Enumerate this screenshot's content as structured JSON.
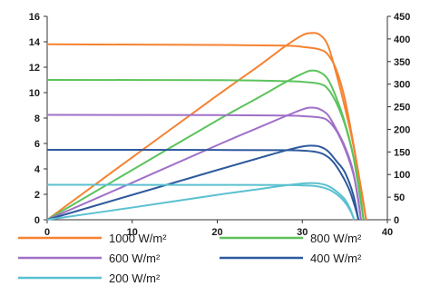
{
  "chart_data": {
    "type": "line",
    "title": "",
    "xlabel": "",
    "ylabel": "",
    "y2label": "",
    "xlim": [
      0,
      40
    ],
    "ylim": [
      0,
      16
    ],
    "y2lim": [
      0,
      450
    ],
    "x_ticks": [
      0,
      10,
      20,
      30,
      40
    ],
    "y_ticks": [
      0,
      2,
      4,
      6,
      8,
      10,
      12,
      14,
      16
    ],
    "y2_ticks": [
      0,
      50,
      100,
      150,
      200,
      250,
      300,
      350,
      400,
      450
    ],
    "grid": false,
    "legend_position": "bottom",
    "series": [
      {
        "name": "1000 W/m²",
        "color": "#f58231",
        "current": {
          "x": [
            0,
            20,
            28,
            30,
            32,
            33,
            34,
            35,
            36,
            37,
            37.5
          ],
          "y": [
            13.8,
            13.75,
            13.7,
            13.6,
            13.4,
            13.0,
            11.8,
            9.5,
            6.0,
            2.0,
            0
          ]
        },
        "power": {
          "x": [
            0,
            10,
            20,
            25,
            28,
            30,
            31,
            32,
            33,
            34,
            35,
            36,
            37,
            37.5
          ],
          "y": [
            0,
            138,
            275,
            342,
            384,
            408,
            413,
            410,
            386,
            323,
            249,
            165,
            60,
            0
          ]
        }
      },
      {
        "name": "800 W/m²",
        "color": "#5cc35c",
        "current": {
          "x": [
            0,
            20,
            28,
            30,
            32,
            33,
            34,
            35,
            36,
            36.8,
            37.2
          ],
          "y": [
            11.0,
            10.98,
            10.9,
            10.85,
            10.7,
            10.3,
            9.2,
            7.5,
            5.0,
            2.0,
            0
          ]
        },
        "power": {
          "x": [
            0,
            10,
            20,
            25,
            28,
            30,
            31,
            32,
            33,
            34,
            35,
            36,
            37.2
          ],
          "y": [
            0,
            110,
            220,
            272,
            304,
            323,
            330,
            327,
            311,
            270,
            215,
            140,
            0
          ]
        }
      },
      {
        "name": "600 W/m²",
        "color": "#a070c8",
        "current": {
          "x": [
            0,
            20,
            28,
            30,
            32,
            33,
            34,
            35,
            36,
            36.6,
            36.9
          ],
          "y": [
            8.25,
            8.23,
            8.2,
            8.15,
            8.05,
            7.8,
            7.0,
            5.6,
            3.6,
            1.5,
            0
          ]
        },
        "power": {
          "x": [
            0,
            10,
            20,
            25,
            28,
            30,
            31,
            32,
            33,
            34,
            35,
            36,
            36.9
          ],
          "y": [
            0,
            82,
            165,
            205,
            229,
            244,
            248,
            245,
            232,
            200,
            162,
            105,
            0
          ]
        }
      },
      {
        "name": "400 W/m²",
        "color": "#2e5a9e",
        "current": {
          "x": [
            0,
            20,
            28,
            30,
            31.5,
            32.5,
            33.5,
            34.5,
            35.5,
            36.2,
            36.6
          ],
          "y": [
            5.5,
            5.49,
            5.47,
            5.44,
            5.35,
            5.15,
            4.65,
            3.7,
            2.4,
            1.0,
            0
          ]
        },
        "power": {
          "x": [
            0,
            10,
            20,
            25,
            28,
            30,
            31,
            32,
            33,
            34,
            35,
            36,
            36.6
          ],
          "y": [
            0,
            55,
            110,
            137,
            153,
            162,
            164,
            162,
            152,
            130,
            105,
            55,
            0
          ]
        }
      },
      {
        "name": "200 W/m²",
        "color": "#5bc0d0",
        "current": {
          "x": [
            0,
            20,
            28,
            30,
            31.5,
            32.5,
            33.5,
            34.5,
            35.2,
            35.8,
            36.1
          ],
          "y": [
            2.75,
            2.74,
            2.73,
            2.7,
            2.65,
            2.52,
            2.25,
            1.75,
            1.2,
            0.5,
            0
          ]
        },
        "power": {
          "x": [
            0,
            10,
            20,
            25,
            28,
            30,
            31,
            32,
            33,
            34,
            35,
            35.6,
            36.1
          ],
          "y": [
            0,
            27,
            55,
            68,
            76,
            80,
            81,
            80,
            75,
            63,
            45,
            25,
            0
          ]
        }
      }
    ]
  }
}
